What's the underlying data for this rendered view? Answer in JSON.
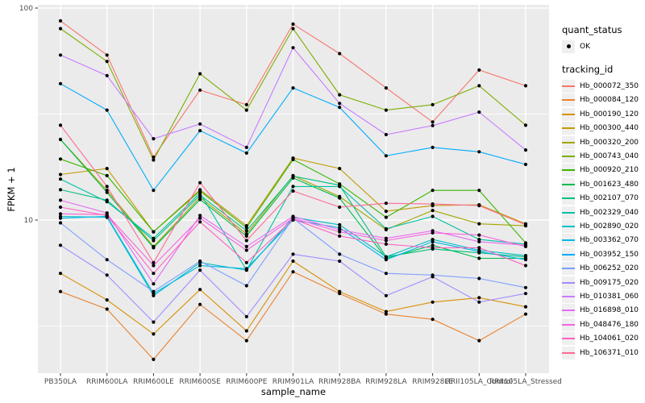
{
  "chart_data": {
    "type": "line",
    "title": "",
    "xlabel": "sample_name",
    "ylabel": "FPKM + 1",
    "y_scale": "log10",
    "y_ticks": [
      {
        "value": 100,
        "label": "100"
      },
      {
        "value": 10,
        "label": "10"
      }
    ],
    "y_minor_gridlines": [
      31.62,
      3.162
    ],
    "grid": true,
    "panel_bg": "#EBEBEB",
    "grid_color": "#FFFFFF",
    "tick_label_color": "#4D4D4D",
    "marker_color": "#000000",
    "categories": [
      "PB350LA",
      "RRIM600LA",
      "RRIM600LE",
      "RRIM600SE",
      "RRIM600PE",
      "RRIM901LA",
      "RRIM928BA",
      "RRIM928LA",
      "RRIM928LE",
      "RRII105LA_Control",
      "RRII105LA_Stressed"
    ],
    "legend": {
      "shape_title": "quant_status",
      "shape_label": "OK",
      "color_title": "tracking_id",
      "position": "right"
    },
    "series": [
      {
        "name": "Hb_000072_350",
        "color": "#F8766D",
        "values": [
          87,
          60,
          19.8,
          41,
          35,
          84,
          61,
          42,
          29,
          51,
          43
        ]
      },
      {
        "name": "Hb_000084_120",
        "color": "#EA8331",
        "values": [
          4.6,
          3.8,
          2.2,
          4.0,
          2.7,
          5.7,
          4.5,
          3.6,
          3.4,
          2.7,
          3.6
        ]
      },
      {
        "name": "Hb_000190_120",
        "color": "#D89000",
        "values": [
          5.6,
          4.2,
          2.9,
          4.7,
          3.0,
          6.4,
          4.6,
          3.7,
          4.1,
          4.3,
          3.9
        ]
      },
      {
        "name": "Hb_000300_440",
        "color": "#C09B00",
        "values": [
          16.4,
          17.5,
          8.8,
          13.9,
          9.4,
          19.6,
          17.5,
          11.0,
          11.7,
          11.8,
          9.6
        ]
      },
      {
        "name": "Hb_000320_200",
        "color": "#A3A500",
        "values": [
          24.0,
          13.8,
          7.5,
          12.8,
          8.6,
          16.2,
          12.9,
          9.0,
          11.1,
          9.6,
          9.4
        ]
      },
      {
        "name": "Hb_000743_040",
        "color": "#7CAE00",
        "values": [
          80,
          56,
          19.2,
          49,
          33,
          80,
          39,
          33,
          35,
          43,
          28
        ]
      },
      {
        "name": "Hb_000920_210",
        "color": "#39B600",
        "values": [
          19.4,
          16.2,
          8.8,
          13.7,
          9.2,
          19.3,
          14.8,
          10.3,
          13.8,
          13.8,
          7.8
        ]
      },
      {
        "name": "Hb_001623_480",
        "color": "#00BB4E",
        "values": [
          24.0,
          13.5,
          7.4,
          12.5,
          8.4,
          15.8,
          12.7,
          6.6,
          7.6,
          6.6,
          6.6
        ]
      },
      {
        "name": "Hb_002107_070",
        "color": "#00BF7D",
        "values": [
          13.9,
          12.4,
          8.0,
          13.1,
          8.9,
          16.1,
          14.6,
          6.7,
          7.3,
          7.0,
          6.7
        ]
      },
      {
        "name": "Hb_002329_040",
        "color": "#00C1A3",
        "values": [
          15.6,
          12.2,
          8.2,
          13.4,
          5.8,
          14.4,
          14.4,
          9.1,
          10.4,
          8.1,
          7.7
        ]
      },
      {
        "name": "Hb_002890_020",
        "color": "#00BFC4",
        "values": [
          10.4,
          10.3,
          4.4,
          6.3,
          5.8,
          10.3,
          9.5,
          6.7,
          8.1,
          7.2,
          6.8
        ]
      },
      {
        "name": "Hb_003362_070",
        "color": "#00B8E7",
        "values": [
          10.2,
          10.4,
          4.5,
          6.1,
          5.9,
          10.0,
          9.2,
          6.5,
          7.9,
          7.1,
          6.5
        ]
      },
      {
        "name": "Hb_003952_150",
        "color": "#00ACFC",
        "values": [
          44,
          33,
          13.8,
          26.4,
          20.7,
          42,
          34,
          20.1,
          22.0,
          21.0,
          18.3
        ]
      },
      {
        "name": "Hb_006252_020",
        "color": "#7B9FFF",
        "values": [
          9.7,
          6.5,
          4.6,
          6.4,
          4.9,
          10.2,
          6.9,
          5.6,
          5.5,
          5.3,
          4.8
        ]
      },
      {
        "name": "Hb_009175_020",
        "color": "#A58AFF",
        "values": [
          7.6,
          5.5,
          3.3,
          5.8,
          3.5,
          6.9,
          6.4,
          4.4,
          5.4,
          4.1,
          4.5
        ]
      },
      {
        "name": "Hb_010381_060",
        "color": "#C77CFF",
        "values": [
          60,
          48,
          24.2,
          28.4,
          22.0,
          65,
          35.5,
          25.3,
          27.9,
          32.3,
          21.4
        ]
      },
      {
        "name": "Hb_016898_010",
        "color": "#E76BF3",
        "values": [
          12.4,
          10.8,
          5.0,
          10.5,
          7.5,
          10.4,
          9.0,
          8.2,
          8.9,
          7.9,
          7.6
        ]
      },
      {
        "name": "Hb_048476_180",
        "color": "#F763DF",
        "values": [
          10.7,
          10.6,
          6.1,
          10.2,
          7.2,
          10.2,
          8.8,
          8.0,
          8.7,
          8.5,
          7.5
        ]
      },
      {
        "name": "Hb_104061_020",
        "color": "#FF61C2",
        "values": [
          11.5,
          10.5,
          5.6,
          9.8,
          6.3,
          10.1,
          8.4,
          7.7,
          7.4,
          7.4,
          6.1
        ]
      },
      {
        "name": "Hb_106371_010",
        "color": "#FF6B94",
        "values": [
          28,
          14.4,
          6.3,
          15.0,
          8.0,
          13.7,
          11.5,
          12.0,
          11.9,
          11.7,
          9.5
        ]
      }
    ]
  }
}
